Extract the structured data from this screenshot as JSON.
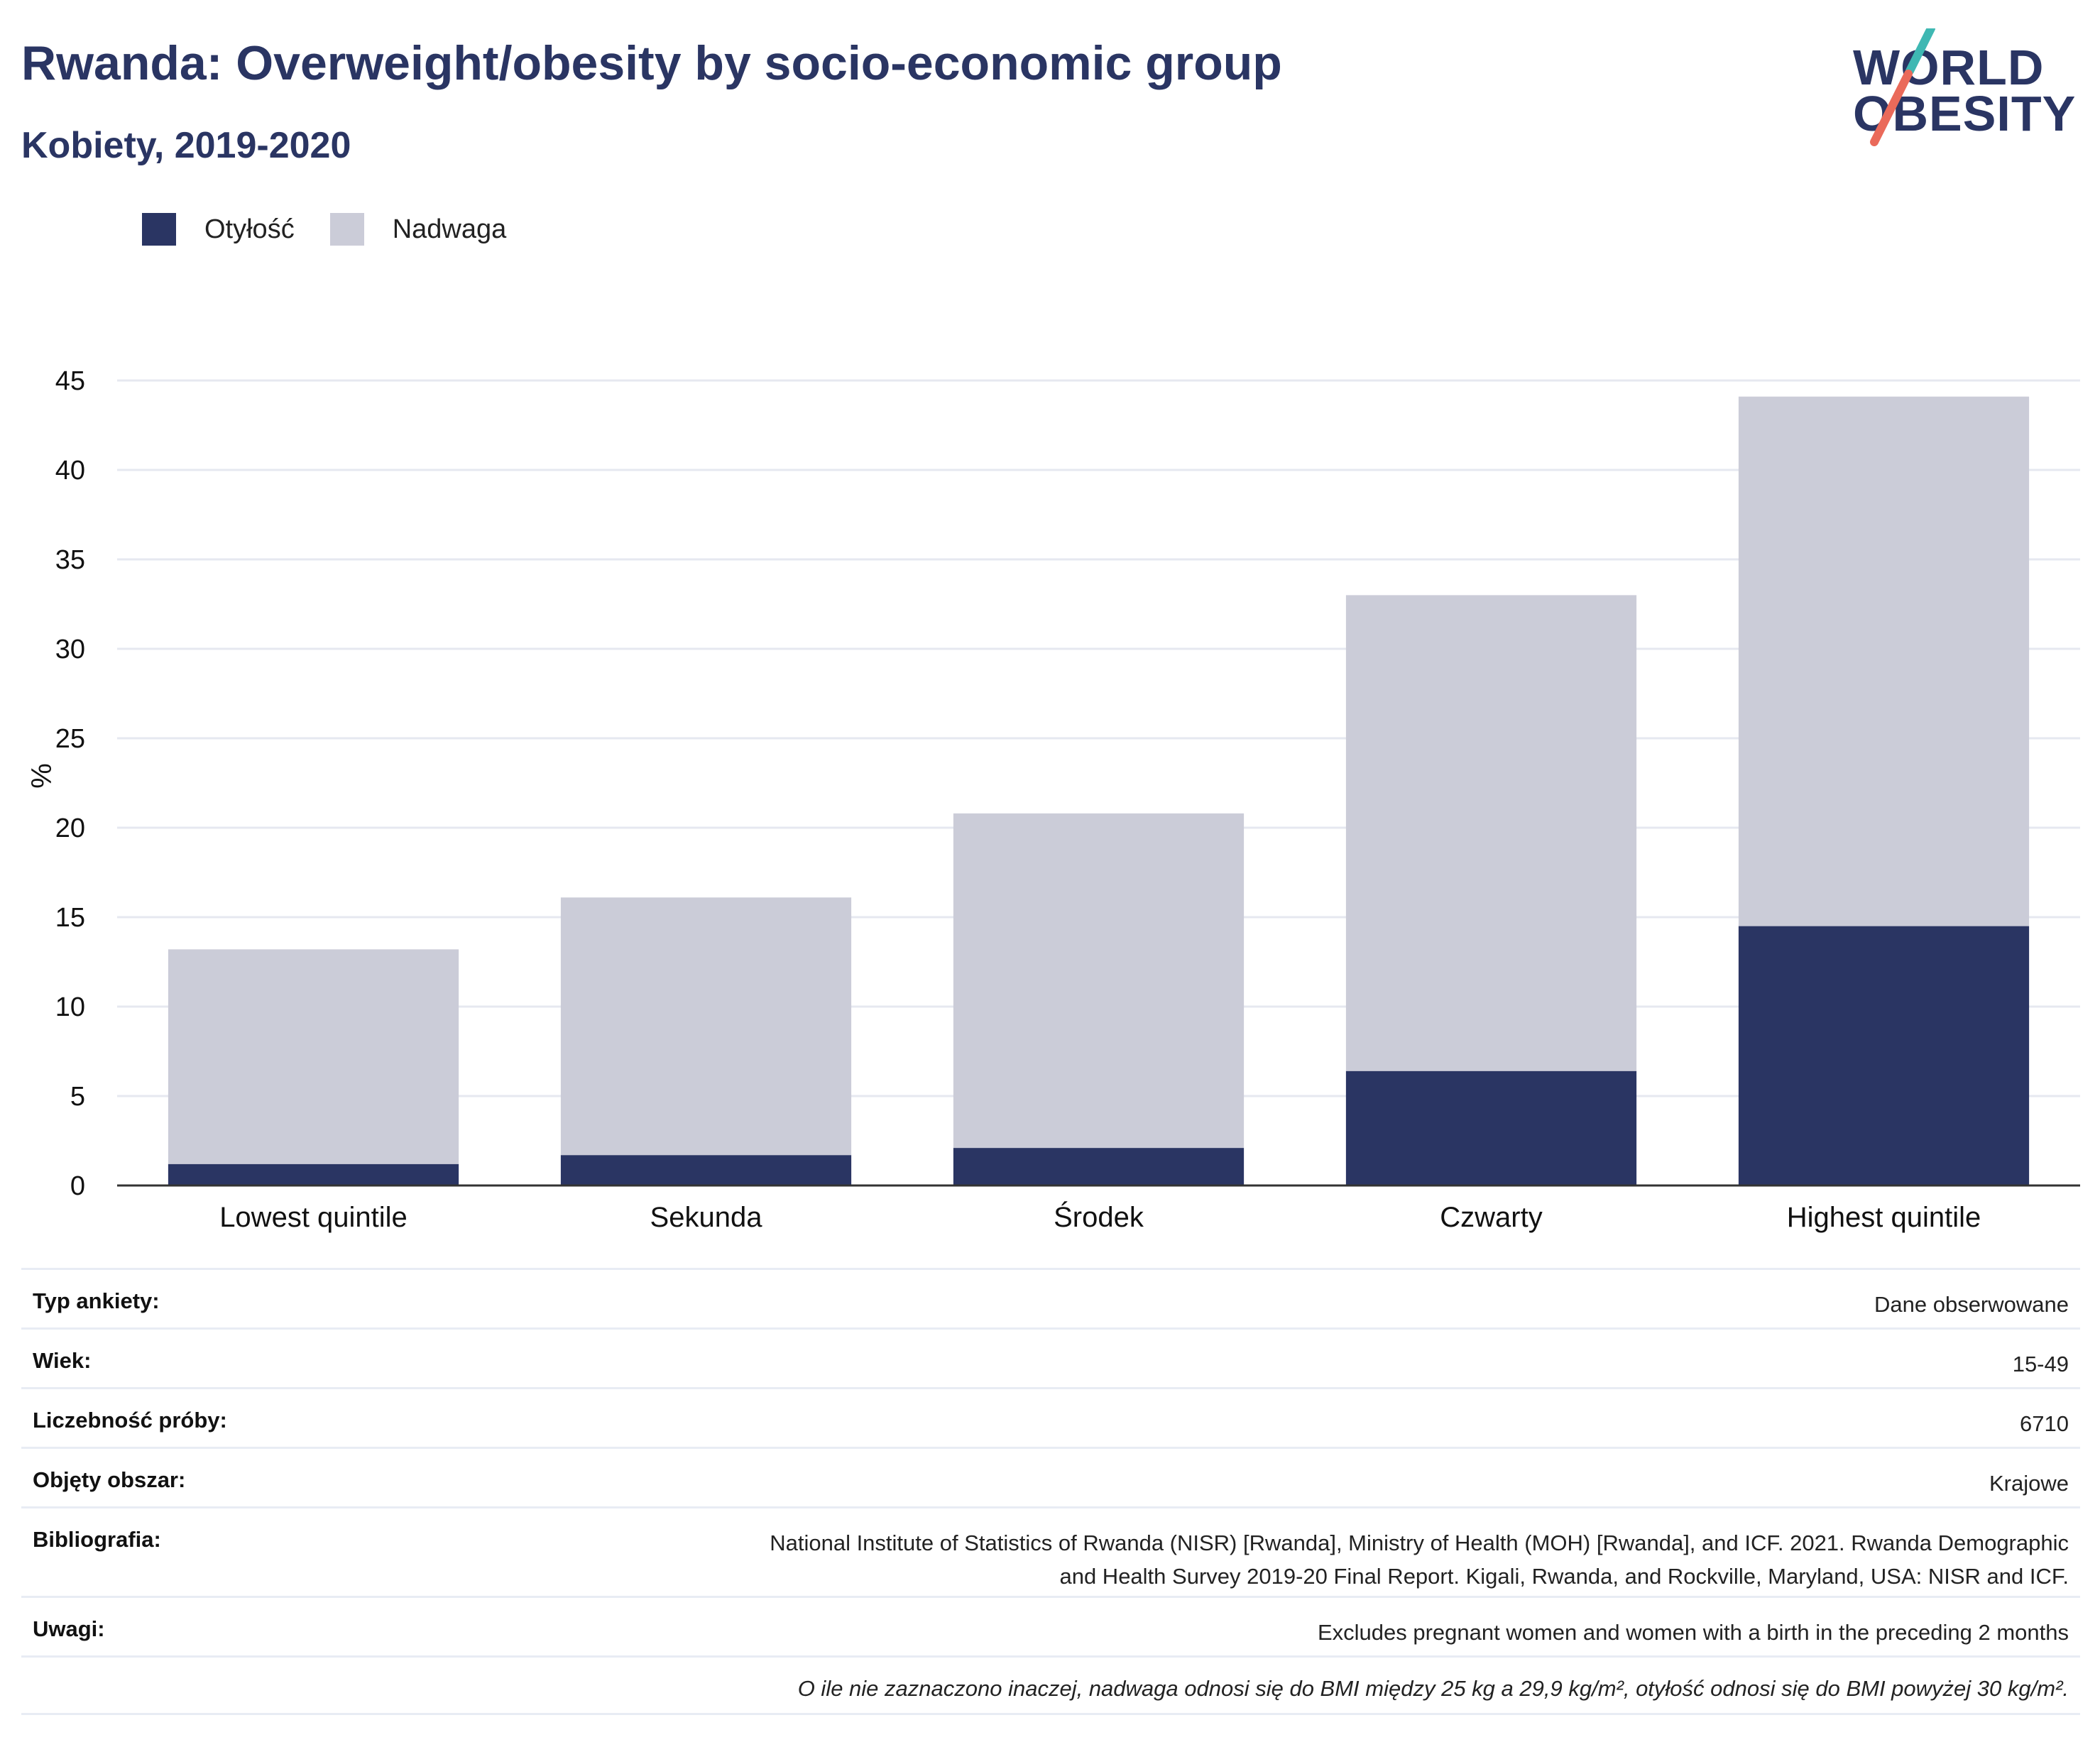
{
  "header": {
    "title": "Rwanda: Overweight/obesity by socio-economic group",
    "subtitle": "Kobiety, 2019-2020"
  },
  "logo": {
    "line1": "WORLD",
    "line2": "OBESITY",
    "colors": {
      "text": "#2a3563",
      "slash_top": "#3fb8b3",
      "slash_bottom": "#ea6a5a"
    }
  },
  "colors": {
    "obesity": "#2a3563",
    "overweight": "#cbccd8",
    "grid": "#e6e8f0",
    "axis": "#333333"
  },
  "legend": [
    {
      "label": "Otyłość",
      "color": "#2a3563"
    },
    {
      "label": "Nadwaga",
      "color": "#cbccd8"
    }
  ],
  "chart_data": {
    "type": "bar",
    "stacked": true,
    "title": "Rwanda: Overweight/obesity by socio-economic group",
    "subtitle": "Kobiety, 2019-2020",
    "ylabel": "%",
    "xlabel": "",
    "ylim": [
      0,
      45
    ],
    "yticks": [
      0,
      5,
      10,
      15,
      20,
      25,
      30,
      35,
      40,
      45
    ],
    "grid": true,
    "legend_position": "top-left",
    "categories": [
      "Lowest quintile",
      "Sekunda",
      "Środek",
      "Czwarty",
      "Highest quintile"
    ],
    "series": [
      {
        "name": "Otyłość",
        "values": [
          1.2,
          1.7,
          2.1,
          6.4,
          14.5
        ]
      },
      {
        "name": "Nadwaga",
        "values": [
          12.0,
          14.4,
          18.7,
          26.6,
          29.6
        ]
      }
    ]
  },
  "metadata": {
    "rows": [
      {
        "key": "Typ ankiety:",
        "value": "Dane obserwowane"
      },
      {
        "key": "Wiek:",
        "value": "15-49"
      },
      {
        "key": "Liczebność próby:",
        "value": "6710"
      },
      {
        "key": "Objęty obszar:",
        "value": "Krajowe"
      },
      {
        "key": "Bibliografia:",
        "value_line1": "National Institute of Statistics of Rwanda (NISR) [Rwanda], Ministry of Health (MOH) [Rwanda], and ICF. 2021. Rwanda Demographic",
        "value_line2": "and Health Survey 2019-20 Final Report. Kigali, Rwanda, and Rockville, Maryland, USA: NISR and ICF."
      },
      {
        "key": "Uwagi:",
        "value": "Excludes pregnant women and women with a birth in the preceding 2 months"
      }
    ],
    "note": "O ile nie zaznaczono inaczej, nadwaga odnosi się do BMI między 25 kg a 29,9 kg/m², otyłość odnosi się do BMI powyżej 30 kg/m²."
  }
}
